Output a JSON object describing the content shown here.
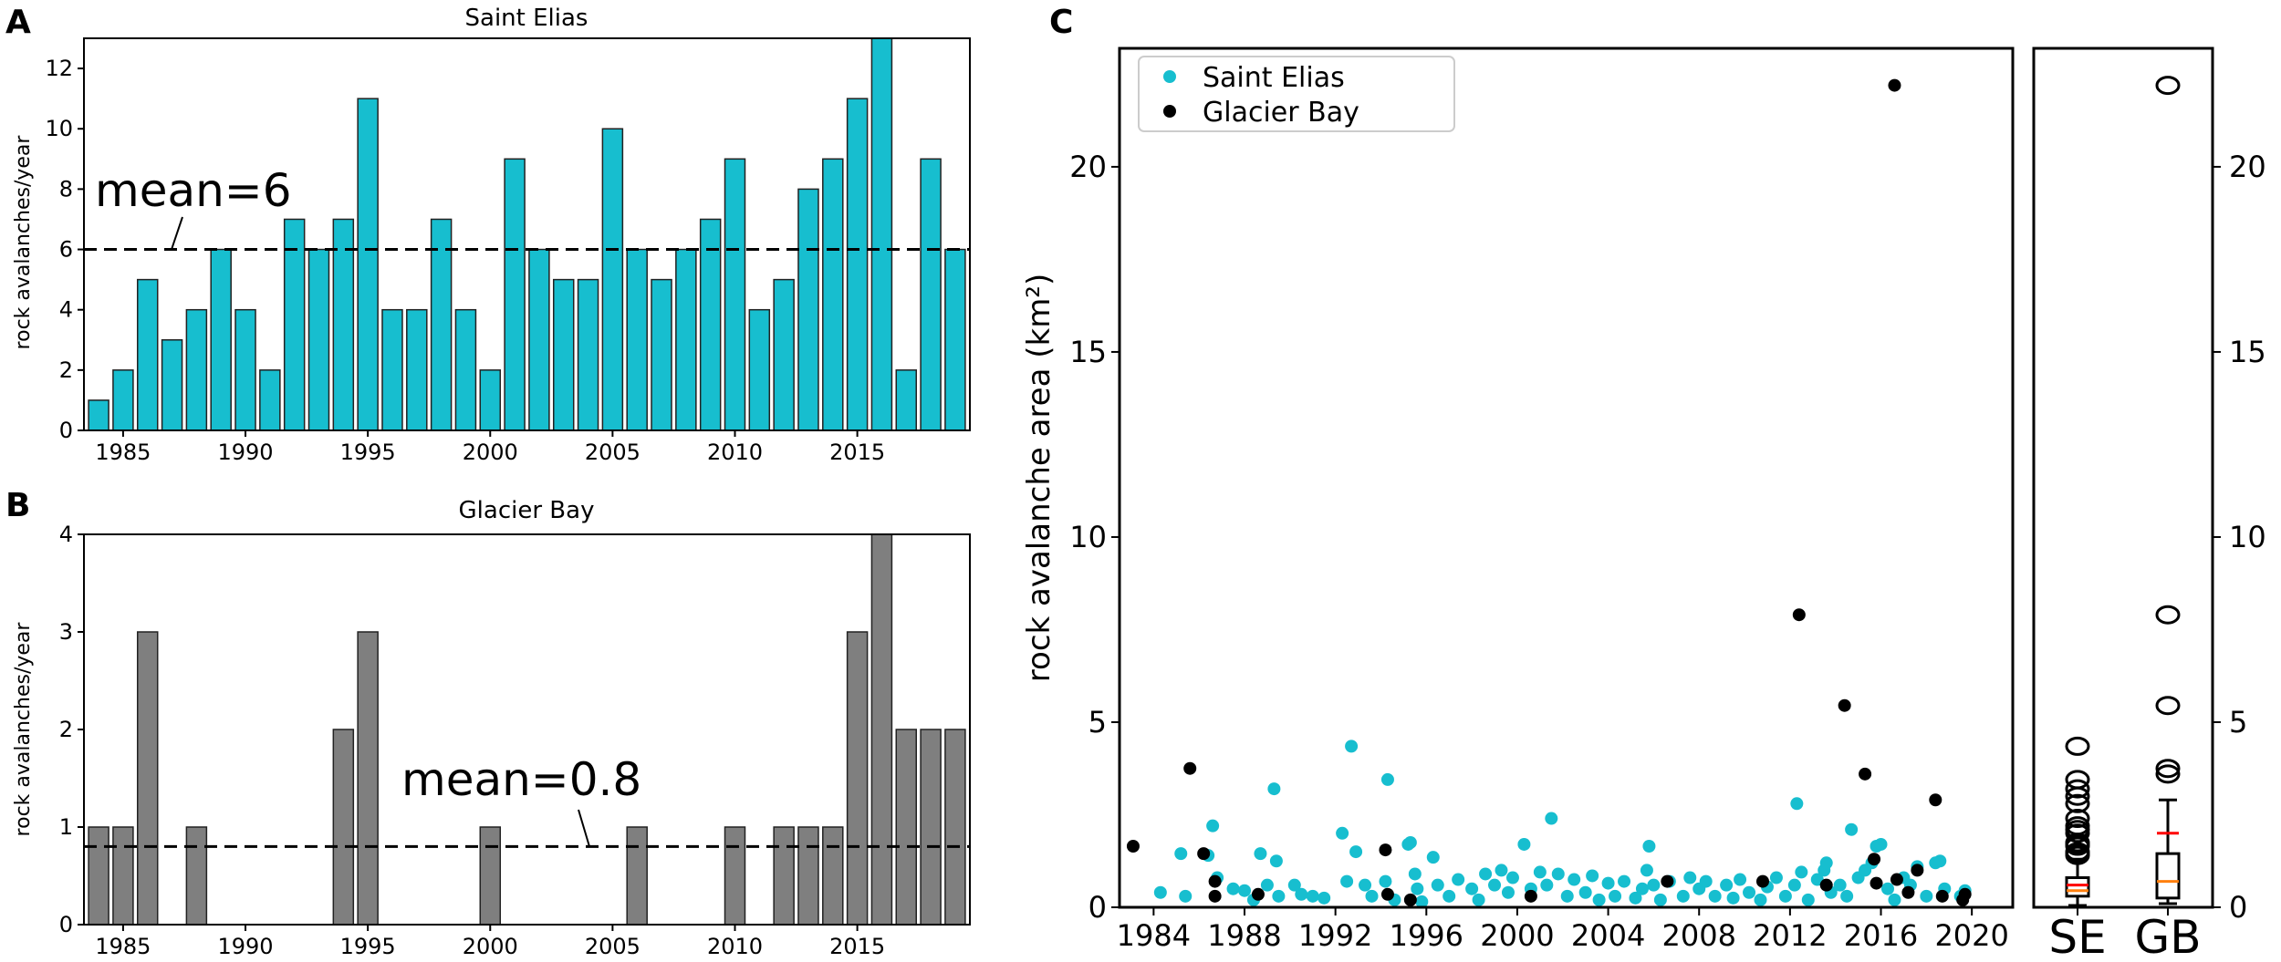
{
  "colors": {
    "se": "#17becf",
    "gb": "#7f7f7f",
    "gb_point": "#000000",
    "median": "#ff7f0e",
    "mean": "#ff0000"
  },
  "chart_data": [
    {
      "panel": "A",
      "type": "bar",
      "title": "Saint Elias",
      "ylabel": "rock avalanches/year",
      "xlabel": "",
      "categories": [
        1984,
        1985,
        1986,
        1987,
        1988,
        1989,
        1990,
        1991,
        1992,
        1993,
        1994,
        1995,
        1996,
        1997,
        1998,
        1999,
        2000,
        2001,
        2002,
        2003,
        2004,
        2005,
        2006,
        2007,
        2008,
        2009,
        2010,
        2011,
        2012,
        2013,
        2014,
        2015,
        2016,
        2017,
        2018,
        2019
      ],
      "values": [
        1,
        2,
        5,
        3,
        4,
        6,
        4,
        2,
        7,
        6,
        7,
        11,
        4,
        4,
        7,
        4,
        2,
        9,
        6,
        5,
        5,
        10,
        6,
        5,
        6,
        7,
        9,
        4,
        5,
        8,
        9,
        11,
        13,
        2,
        9,
        6
      ],
      "xticks": [
        1985,
        1990,
        1995,
        2000,
        2005,
        2010,
        2015
      ],
      "yticks": [
        0,
        2,
        4,
        6,
        8,
        10,
        12
      ],
      "ylim": [
        0,
        13
      ],
      "mean": 6,
      "mean_label": "mean=6"
    },
    {
      "panel": "B",
      "type": "bar",
      "title": "Glacier Bay",
      "ylabel": "rock avalanches/year",
      "xlabel": "",
      "categories": [
        1984,
        1985,
        1986,
        1987,
        1988,
        1989,
        1990,
        1991,
        1992,
        1993,
        1994,
        1995,
        1996,
        1997,
        1998,
        1999,
        2000,
        2001,
        2002,
        2003,
        2004,
        2005,
        2006,
        2007,
        2008,
        2009,
        2010,
        2011,
        2012,
        2013,
        2014,
        2015,
        2016,
        2017,
        2018,
        2019
      ],
      "values": [
        1,
        1,
        3,
        0,
        1,
        0,
        0,
        0,
        0,
        0,
        2,
        3,
        0,
        0,
        0,
        0,
        1,
        0,
        0,
        0,
        0,
        0,
        1,
        0,
        0,
        0,
        1,
        0,
        1,
        1,
        1,
        3,
        4,
        2,
        2,
        2
      ],
      "xticks": [
        1985,
        1990,
        1995,
        2000,
        2005,
        2010,
        2015
      ],
      "yticks": [
        0,
        1,
        2,
        3,
        4
      ],
      "ylim": [
        0,
        4
      ],
      "mean": 0.8,
      "mean_label": "mean=0.8"
    },
    {
      "panel": "C",
      "type": "scatter",
      "title": "",
      "ylabel": "rock avalanche area (km²)",
      "xlabel": "",
      "xlim": [
        1982.5,
        2021.8
      ],
      "ylim": [
        0,
        23.2
      ],
      "xticks": [
        1984,
        1988,
        1992,
        1996,
        2000,
        2004,
        2008,
        2012,
        2016,
        2020
      ],
      "yticks": [
        0,
        5,
        10,
        15,
        20
      ],
      "legend": {
        "placement": "top-left",
        "entries": [
          "Saint Elias",
          "Glacier Bay"
        ]
      },
      "series": [
        {
          "name": "Saint Elias",
          "points": [
            [
              1984.3,
              0.4
            ],
            [
              1985.2,
              1.45
            ],
            [
              1985.4,
              0.3
            ],
            [
              1986.4,
              1.4
            ],
            [
              1986.6,
              2.2
            ],
            [
              1986.8,
              0.8
            ],
            [
              1987.5,
              0.5
            ],
            [
              1988,
              0.45
            ],
            [
              1988.4,
              0.2
            ],
            [
              1988.7,
              1.45
            ],
            [
              1989,
              0.6
            ],
            [
              1989.3,
              3.2
            ],
            [
              1989.4,
              1.25
            ],
            [
              1989.5,
              0.3
            ],
            [
              1990.2,
              0.6
            ],
            [
              1990.5,
              0.35
            ],
            [
              1991,
              0.3
            ],
            [
              1991.5,
              0.25
            ],
            [
              1992.3,
              2.0
            ],
            [
              1992.5,
              0.7
            ],
            [
              1992.7,
              4.35
            ],
            [
              1992.9,
              1.5
            ],
            [
              1993.3,
              0.6
            ],
            [
              1993.6,
              0.3
            ],
            [
              1994.2,
              0.7
            ],
            [
              1994.3,
              3.45
            ],
            [
              1994.6,
              0.2
            ],
            [
              1995.2,
              1.7
            ],
            [
              1995.3,
              1.75
            ],
            [
              1995.5,
              0.9
            ],
            [
              1995.6,
              0.5
            ],
            [
              1995.8,
              0.15
            ],
            [
              1996.3,
              1.35
            ],
            [
              1996.5,
              0.6
            ],
            [
              1997,
              0.3
            ],
            [
              1997.4,
              0.75
            ],
            [
              1998,
              0.5
            ],
            [
              1998.3,
              0.2
            ],
            [
              1998.6,
              0.9
            ],
            [
              1999,
              0.6
            ],
            [
              1999.3,
              1.0
            ],
            [
              1999.6,
              0.4
            ],
            [
              1999.8,
              0.8
            ],
            [
              2000.3,
              1.7
            ],
            [
              2000.6,
              0.5
            ],
            [
              2001,
              0.95
            ],
            [
              2001.3,
              0.6
            ],
            [
              2001.5,
              2.4
            ],
            [
              2001.8,
              0.9
            ],
            [
              2002.2,
              0.3
            ],
            [
              2002.5,
              0.75
            ],
            [
              2003,
              0.4
            ],
            [
              2003.3,
              0.85
            ],
            [
              2003.6,
              0.2
            ],
            [
              2004,
              0.65
            ],
            [
              2004.3,
              0.3
            ],
            [
              2004.7,
              0.7
            ],
            [
              2005.2,
              0.25
            ],
            [
              2005.5,
              0.5
            ],
            [
              2005.7,
              1.0
            ],
            [
              2005.8,
              1.65
            ],
            [
              2006,
              0.6
            ],
            [
              2006.3,
              0.2
            ],
            [
              2006.7,
              0.7
            ],
            [
              2007.3,
              0.3
            ],
            [
              2007.6,
              0.8
            ],
            [
              2008,
              0.5
            ],
            [
              2008.3,
              0.7
            ],
            [
              2008.7,
              0.3
            ],
            [
              2009.2,
              0.6
            ],
            [
              2009.5,
              0.25
            ],
            [
              2009.8,
              0.75
            ],
            [
              2010.2,
              0.4
            ],
            [
              2010.7,
              0.2
            ],
            [
              2011,
              0.55
            ],
            [
              2011.4,
              0.8
            ],
            [
              2011.8,
              0.3
            ],
            [
              2012.2,
              0.6
            ],
            [
              2012.3,
              2.8
            ],
            [
              2012.5,
              0.95
            ],
            [
              2012.8,
              0.2
            ],
            [
              2013.2,
              0.75
            ],
            [
              2013.5,
              1.0
            ],
            [
              2013.6,
              1.2
            ],
            [
              2013.8,
              0.4
            ],
            [
              2014.2,
              0.6
            ],
            [
              2014.5,
              0.3
            ],
            [
              2014.7,
              2.1
            ],
            [
              2015,
              0.8
            ],
            [
              2015.3,
              1.0
            ],
            [
              2015.6,
              1.2
            ],
            [
              2015.8,
              1.65
            ],
            [
              2016,
              1.7
            ],
            [
              2016.3,
              0.5
            ],
            [
              2016.6,
              0.2
            ],
            [
              2017,
              0.8
            ],
            [
              2017.3,
              0.6
            ],
            [
              2017.6,
              1.1
            ],
            [
              2018,
              0.3
            ],
            [
              2018.4,
              1.2
            ],
            [
              2018.6,
              1.25
            ],
            [
              2018.8,
              0.5
            ],
            [
              2019.5,
              0.3
            ],
            [
              2019.7,
              0.45
            ]
          ]
        },
        {
          "name": "Glacier Bay",
          "points": [
            [
              1983.1,
              1.65
            ],
            [
              1985.6,
              3.75
            ],
            [
              1986.2,
              1.45
            ],
            [
              1986.7,
              0.7
            ],
            [
              1986.7,
              0.3
            ],
            [
              1988.6,
              0.35
            ],
            [
              1994.2,
              1.55
            ],
            [
              1994.3,
              0.35
            ],
            [
              1995.3,
              0.2
            ],
            [
              2000.6,
              0.3
            ],
            [
              2006.6,
              0.7
            ],
            [
              2010.8,
              0.7
            ],
            [
              2012.4,
              7.9
            ],
            [
              2013.6,
              0.6
            ],
            [
              2014.4,
              5.45
            ],
            [
              2015.3,
              3.6
            ],
            [
              2015.7,
              1.3
            ],
            [
              2015.8,
              0.65
            ],
            [
              2016.6,
              22.2
            ],
            [
              2016.7,
              0.75
            ],
            [
              2017.2,
              0.4
            ],
            [
              2017.6,
              1.0
            ],
            [
              2018.4,
              2.9
            ],
            [
              2018.7,
              0.3
            ],
            [
              2019.6,
              0.2
            ],
            [
              2019.7,
              0.35
            ]
          ]
        }
      ]
    },
    {
      "panel": "C-box",
      "type": "box",
      "ylim": [
        0,
        23.2
      ],
      "yticks": [
        0,
        5,
        10,
        15,
        20
      ],
      "categories": [
        "SE",
        "GB"
      ],
      "boxes": [
        {
          "name": "SE",
          "whisker_low": 0.05,
          "q1": 0.3,
          "median": 0.45,
          "q3": 0.8,
          "whisker_high": 1.3,
          "mean": 0.6,
          "outliers": [
            4.35,
            3.45,
            3.2,
            3.0,
            2.8,
            2.4,
            2.2,
            2.1,
            2.0,
            1.75,
            1.7,
            1.65,
            1.5,
            1.45,
            1.4
          ]
        },
        {
          "name": "GB",
          "whisker_low": 0.1,
          "q1": 0.25,
          "median": 0.7,
          "q3": 1.45,
          "whisker_high": 2.9,
          "mean": 2.0,
          "outliers": [
            22.2,
            7.9,
            5.45,
            3.75,
            3.6
          ]
        }
      ]
    }
  ]
}
